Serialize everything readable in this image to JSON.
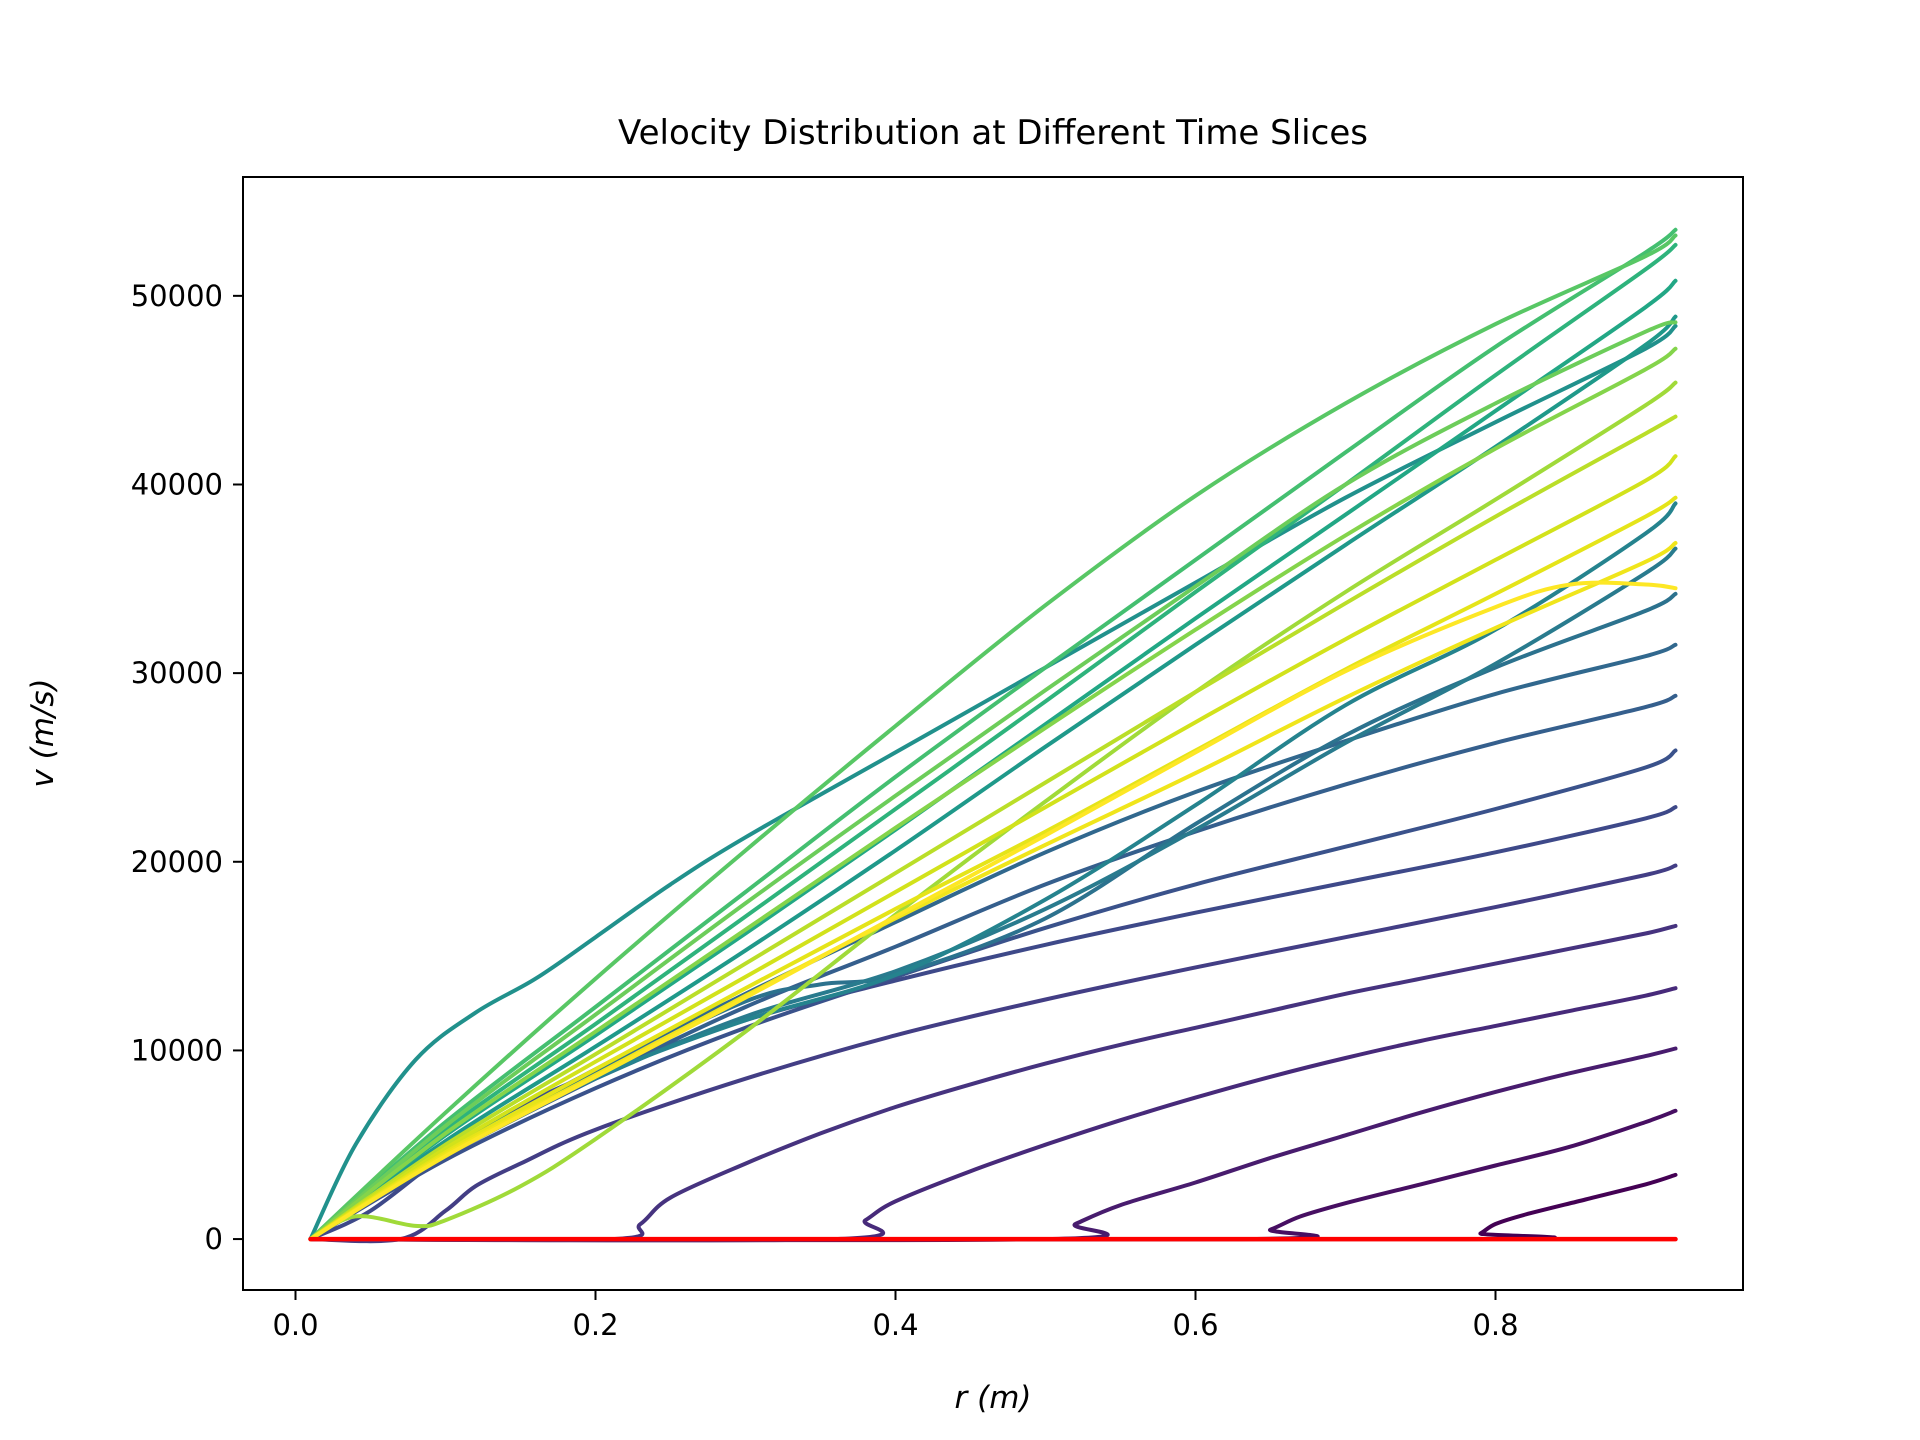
{
  "chart_data": {
    "type": "line",
    "title": "Velocity Distribution at Different Time Slices",
    "xlabel": "r (m)",
    "ylabel": "v (m/s)",
    "xlim": [
      -0.035,
      0.965
    ],
    "ylim": [
      -2700,
      56300
    ],
    "xticks": [
      0.0,
      0.2,
      0.4,
      0.6,
      0.8
    ],
    "xtick_labels": [
      "0.0",
      "0.2",
      "0.4",
      "0.6",
      "0.8"
    ],
    "yticks": [
      0,
      10000,
      20000,
      30000,
      40000,
      50000
    ],
    "ytick_labels": [
      "0",
      "10000",
      "20000",
      "30000",
      "40000",
      "50000"
    ],
    "grid": false,
    "legend": "none",
    "colormap": "viridis",
    "colors": {
      "reference_line": "#ff0000",
      "viridis_stops": [
        "#440154",
        "#472d7b",
        "#3b528b",
        "#2c728e",
        "#21918c",
        "#28ae80",
        "#5ec962",
        "#addc30",
        "#fde725"
      ]
    },
    "series": [
      {
        "color": "#440154",
        "x": [
          0.01,
          0.78,
          0.79,
          0.8,
          0.82,
          0.86,
          0.9,
          0.92
        ],
        "y": [
          0,
          0,
          300,
          800,
          1300,
          2100,
          2900,
          3400
        ]
      },
      {
        "color": "#470f62",
        "x": [
          0.01,
          0.63,
          0.65,
          0.67,
          0.7,
          0.75,
          0.8,
          0.85,
          0.9,
          0.92
        ],
        "y": [
          0,
          0,
          500,
          1200,
          1900,
          2900,
          3900,
          4900,
          6200,
          6800
        ]
      },
      {
        "color": "#481c6e",
        "x": [
          0.01,
          0.5,
          0.52,
          0.55,
          0.6,
          0.65,
          0.7,
          0.75,
          0.8,
          0.85,
          0.9,
          0.92
        ],
        "y": [
          0,
          0,
          800,
          1800,
          3000,
          4300,
          5500,
          6700,
          7800,
          8800,
          9700,
          10100
        ]
      },
      {
        "color": "#472a7a",
        "x": [
          0.01,
          0.36,
          0.38,
          0.4,
          0.45,
          0.5,
          0.55,
          0.6,
          0.65,
          0.7,
          0.75,
          0.8,
          0.85,
          0.9,
          0.92
        ],
        "y": [
          0,
          0,
          1000,
          2000,
          3600,
          5000,
          6300,
          7500,
          8600,
          9600,
          10500,
          11300,
          12100,
          12900,
          13300
        ]
      },
      {
        "color": "#46337f",
        "x": [
          0.01,
          0.21,
          0.23,
          0.25,
          0.3,
          0.35,
          0.4,
          0.45,
          0.5,
          0.55,
          0.6,
          0.65,
          0.7,
          0.75,
          0.8,
          0.85,
          0.9,
          0.92
        ],
        "y": [
          0,
          0,
          800,
          2200,
          4000,
          5600,
          7000,
          8200,
          9300,
          10300,
          11200,
          12100,
          13000,
          13800,
          14600,
          15400,
          16200,
          16600
        ]
      },
      {
        "color": "#433e85",
        "x": [
          0.01,
          0.07,
          0.1,
          0.12,
          0.15,
          0.2,
          0.3,
          0.4,
          0.5,
          0.6,
          0.7,
          0.8,
          0.9,
          0.92
        ],
        "y": [
          0,
          0,
          1500,
          2800,
          4000,
          5800,
          8500,
          10800,
          12700,
          14400,
          16000,
          17600,
          19300,
          19800
        ]
      },
      {
        "color": "#3e4989",
        "x": [
          0.01,
          0.05,
          0.1,
          0.15,
          0.2,
          0.3,
          0.4,
          0.5,
          0.6,
          0.7,
          0.8,
          0.9,
          0.92
        ],
        "y": [
          0,
          1500,
          4500,
          7000,
          8800,
          11600,
          13700,
          15600,
          17300,
          18900,
          20500,
          22300,
          22900
        ]
      },
      {
        "color": "#3a528b",
        "x": [
          0.01,
          0.1,
          0.2,
          0.3,
          0.4,
          0.5,
          0.6,
          0.7,
          0.8,
          0.9,
          0.92
        ],
        "y": [
          0,
          4200,
          8000,
          11200,
          13900,
          16500,
          18800,
          20800,
          22800,
          25000,
          25900
        ]
      },
      {
        "color": "#355f8d",
        "x": [
          0.01,
          0.1,
          0.2,
          0.3,
          0.4,
          0.5,
          0.6,
          0.7,
          0.8,
          0.9,
          0.92
        ],
        "y": [
          0,
          4400,
          8500,
          12300,
          15500,
          18800,
          21600,
          24100,
          26300,
          28200,
          28800
        ]
      },
      {
        "color": "#31688e",
        "x": [
          0.01,
          0.1,
          0.2,
          0.3,
          0.4,
          0.5,
          0.6,
          0.7,
          0.8,
          0.9,
          0.92
        ],
        "y": [
          0,
          4600,
          9000,
          13000,
          16800,
          20500,
          23700,
          26400,
          28900,
          30900,
          31500
        ]
      },
      {
        "color": "#2c728e",
        "x": [
          0.01,
          0.1,
          0.2,
          0.3,
          0.35,
          0.4,
          0.5,
          0.6,
          0.7,
          0.8,
          0.9,
          0.92
        ],
        "y": [
          0,
          4500,
          8800,
          12600,
          13500,
          14000,
          17000,
          22000,
          26700,
          30300,
          33300,
          34200
        ]
      },
      {
        "color": "#297b8e",
        "x": [
          0.01,
          0.1,
          0.2,
          0.3,
          0.4,
          0.5,
          0.6,
          0.7,
          0.8,
          0.9,
          0.92
        ],
        "y": [
          0,
          4700,
          8500,
          11800,
          14200,
          17500,
          21700,
          26300,
          30500,
          35300,
          36600
        ]
      },
      {
        "color": "#25838e",
        "x": [
          0.01,
          0.1,
          0.2,
          0.3,
          0.4,
          0.5,
          0.6,
          0.7,
          0.8,
          0.9,
          0.92
        ],
        "y": [
          0,
          4800,
          8600,
          11600,
          14000,
          18000,
          23000,
          28300,
          32300,
          37400,
          39000
        ]
      },
      {
        "color": "#21918c",
        "x": [
          0.01,
          0.04,
          0.08,
          0.12,
          0.16,
          0.2,
          0.25,
          0.3,
          0.4,
          0.5,
          0.6,
          0.7,
          0.8,
          0.9,
          0.92
        ],
        "y": [
          0,
          5000,
          9500,
          12000,
          13800,
          16000,
          18800,
          21300,
          25800,
          30300,
          34800,
          39300,
          43300,
          47200,
          48400
        ]
      },
      {
        "color": "#1f998a",
        "x": [
          0.01,
          0.1,
          0.2,
          0.3,
          0.4,
          0.5,
          0.6,
          0.7,
          0.8,
          0.9,
          0.92
        ],
        "y": [
          0,
          5200,
          10200,
          15300,
          20600,
          26100,
          31500,
          36800,
          42000,
          47400,
          48900
        ]
      },
      {
        "color": "#22a785",
        "x": [
          0.01,
          0.1,
          0.2,
          0.3,
          0.4,
          0.5,
          0.6,
          0.7,
          0.8,
          0.9,
          0.92
        ],
        "y": [
          0,
          5500,
          10800,
          16200,
          21700,
          27300,
          32900,
          38400,
          43900,
          49400,
          50800
        ]
      },
      {
        "color": "#2eb37c",
        "x": [
          0.01,
          0.1,
          0.2,
          0.3,
          0.4,
          0.5,
          0.6,
          0.7,
          0.8,
          0.9,
          0.92
        ],
        "y": [
          0,
          5800,
          11400,
          17100,
          22800,
          28500,
          34300,
          40000,
          45800,
          51400,
          52700
        ]
      },
      {
        "color": "#44bf70",
        "x": [
          0.01,
          0.1,
          0.2,
          0.3,
          0.4,
          0.5,
          0.6,
          0.7,
          0.8,
          0.9,
          0.92
        ],
        "y": [
          0,
          6200,
          12300,
          18400,
          24500,
          30300,
          36000,
          41700,
          47300,
          52300,
          53500
        ]
      },
      {
        "color": "#58c765",
        "x": [
          0.01,
          0.1,
          0.2,
          0.3,
          0.4,
          0.5,
          0.6,
          0.7,
          0.8,
          0.9,
          0.92
        ],
        "y": [
          0,
          6700,
          13800,
          20600,
          27200,
          33600,
          39400,
          44300,
          48500,
          52100,
          53200
        ]
      },
      {
        "color": "#6ccd5a",
        "x": [
          0.01,
          0.1,
          0.2,
          0.3,
          0.4,
          0.5,
          0.6,
          0.7,
          0.8,
          0.9,
          0.92
        ],
        "y": [
          0,
          6000,
          11900,
          17800,
          23500,
          29100,
          34600,
          40000,
          44300,
          48100,
          48600
        ]
      },
      {
        "color": "#84d44b",
        "x": [
          0.01,
          0.1,
          0.2,
          0.3,
          0.4,
          0.5,
          0.6,
          0.7,
          0.8,
          0.9,
          0.92
        ],
        "y": [
          0,
          5600,
          11000,
          16400,
          21800,
          27100,
          32300,
          37300,
          41900,
          46100,
          47200
        ]
      },
      {
        "color": "#a0da39",
        "x": [
          0.01,
          0.04,
          0.08,
          0.1,
          0.15,
          0.2,
          0.3,
          0.4,
          0.5,
          0.6,
          0.7,
          0.8,
          0.9,
          0.92
        ],
        "y": [
          0,
          1200,
          700,
          1000,
          2800,
          5300,
          11000,
          17200,
          23200,
          29000,
          34300,
          39200,
          44200,
          45400
        ]
      },
      {
        "color": "#bade28",
        "x": [
          0.01,
          0.1,
          0.2,
          0.3,
          0.4,
          0.5,
          0.6,
          0.7,
          0.8,
          0.9,
          0.92
        ],
        "y": [
          0,
          5000,
          9800,
          14600,
          19400,
          24200,
          29000,
          33700,
          38300,
          42700,
          43600
        ]
      },
      {
        "color": "#d2e21b",
        "x": [
          0.01,
          0.1,
          0.2,
          0.3,
          0.4,
          0.5,
          0.6,
          0.7,
          0.8,
          0.9,
          0.92
        ],
        "y": [
          0,
          4800,
          9400,
          13900,
          18400,
          22900,
          27400,
          31800,
          36000,
          40200,
          41500
        ]
      },
      {
        "color": "#e5e419",
        "x": [
          0.01,
          0.1,
          0.2,
          0.3,
          0.4,
          0.5,
          0.6,
          0.7,
          0.8,
          0.9,
          0.92
        ],
        "y": [
          0,
          4600,
          9000,
          13300,
          17500,
          21600,
          25900,
          30200,
          34200,
          38300,
          39300
        ]
      },
      {
        "color": "#f0e51b",
        "x": [
          0.01,
          0.1,
          0.2,
          0.3,
          0.4,
          0.5,
          0.6,
          0.7,
          0.8,
          0.9,
          0.92
        ],
        "y": [
          0,
          4500,
          8700,
          12900,
          17000,
          20900,
          24700,
          28700,
          32400,
          35900,
          36900
        ]
      },
      {
        "color": "#fde725",
        "x": [
          0.01,
          0.1,
          0.2,
          0.3,
          0.4,
          0.5,
          0.6,
          0.7,
          0.8,
          0.85,
          0.9,
          0.92
        ],
        "y": [
          0,
          4400,
          8600,
          12800,
          17100,
          21400,
          25800,
          30100,
          33500,
          34700,
          34700,
          34500
        ]
      },
      {
        "color": "#ff0000",
        "x": [
          0.01,
          0.92
        ],
        "y": [
          0,
          0
        ]
      }
    ]
  }
}
